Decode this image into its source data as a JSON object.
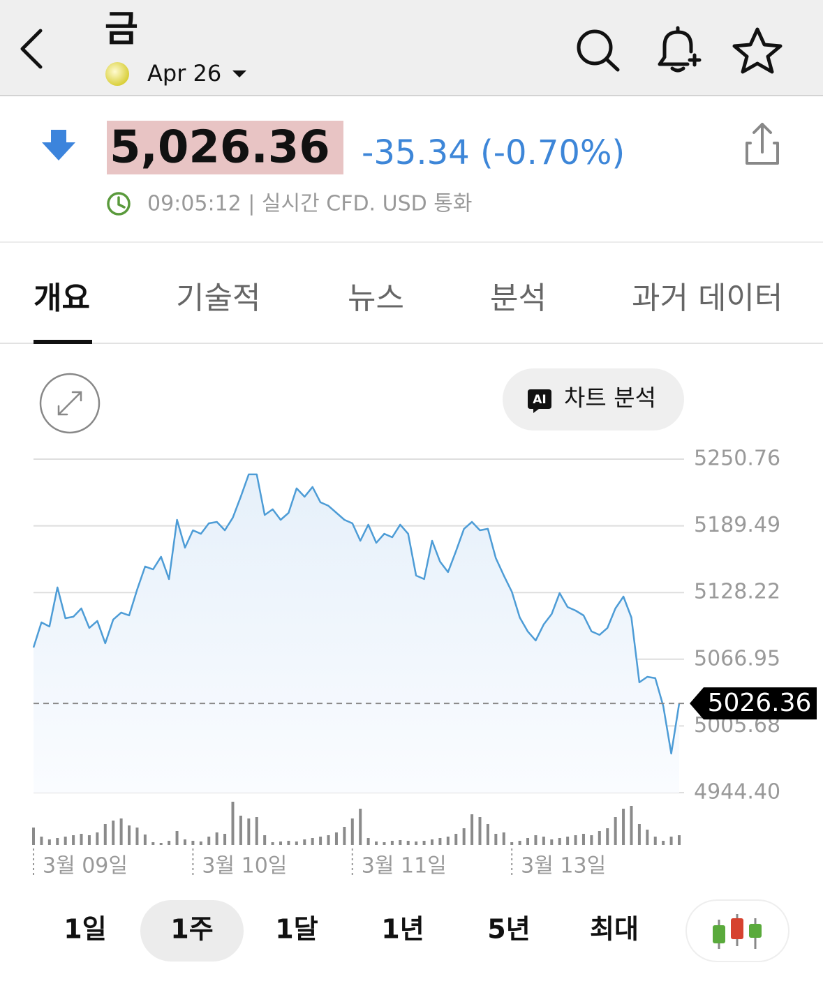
{
  "header": {
    "title": "금",
    "subtitle": "Apr 26"
  },
  "quote": {
    "price": "5,026.36",
    "change": "-35.34 (-0.70%)",
    "time_info": "09:05:12 | 실시간 CFD. USD 통화"
  },
  "tabs": [
    "개요",
    "기술적",
    "뉴스",
    "분석",
    "과거 데이터"
  ],
  "chart_button": {
    "badge": "AI",
    "label": "차트 분석"
  },
  "chart_data": {
    "type": "line",
    "categories": [
      "3월 09일",
      null,
      null,
      null,
      null,
      null,
      null,
      null,
      null,
      null,
      null,
      null,
      null,
      null,
      null,
      null,
      null,
      null,
      null,
      null,
      "3월 10일",
      null,
      null,
      null,
      null,
      null,
      null,
      null,
      null,
      null,
      null,
      null,
      null,
      null,
      null,
      null,
      null,
      null,
      null,
      null,
      "3월 11일",
      null,
      null,
      null,
      null,
      null,
      null,
      null,
      null,
      null,
      null,
      null,
      null,
      null,
      null,
      null,
      null,
      null,
      null,
      null,
      "3월 13일",
      null,
      null,
      null,
      null,
      null,
      null,
      null,
      null,
      null,
      null,
      null,
      null,
      null,
      null,
      null,
      null,
      null,
      null,
      null,
      null,
      null
    ],
    "values": [
      5077.7,
      5100.8,
      5097.0,
      5132.9,
      5104.6,
      5106.0,
      5113.6,
      5095.7,
      5102.1,
      5081.6,
      5103.4,
      5109.8,
      5107.2,
      5131.0,
      5152.1,
      5149.5,
      5161.1,
      5140.6,
      5195.0,
      5169.4,
      5185.4,
      5182.2,
      5191.8,
      5193.1,
      5185.4,
      5197.0,
      5216.2,
      5236.7,
      5236.7,
      5199.5,
      5204.7,
      5195.0,
      5201.4,
      5223.9,
      5216.2,
      5225.2,
      5211.1,
      5207.9,
      5201.4,
      5195.0,
      5191.8,
      5175.8,
      5190.6,
      5173.9,
      5182.2,
      5179.0,
      5190.6,
      5182.2,
      5143.8,
      5140.6,
      5175.8,
      5156.6,
      5147.0,
      5166.2,
      5186.7,
      5193.1,
      5185.4,
      5186.7,
      5159.8,
      5143.8,
      5129.0,
      5105.3,
      5092.5,
      5084.2,
      5098.9,
      5108.5,
      5127.7,
      5114.9,
      5111.7,
      5107.2,
      5092.5,
      5089.3,
      5095.7,
      5113.6,
      5124.5,
      5105.3,
      5045.7,
      5050.8,
      5049.6,
      5023.9,
      4980.3,
      5026.36
    ],
    "volume": [
      25,
      12,
      8,
      10,
      12,
      14,
      16,
      14,
      18,
      30,
      35,
      38,
      28,
      25,
      15,
      4,
      3,
      6,
      20,
      8,
      6,
      5,
      12,
      18,
      16,
      62,
      42,
      38,
      40,
      14,
      4,
      5,
      6,
      5,
      8,
      10,
      12,
      14,
      18,
      26,
      38,
      52,
      10,
      5,
      4,
      6,
      7,
      6,
      5,
      6,
      8,
      10,
      12,
      16,
      24,
      44,
      40,
      30,
      16,
      18,
      4,
      6,
      10,
      14,
      12,
      8,
      10,
      12,
      14,
      16,
      14,
      20,
      24,
      40,
      52,
      56,
      30,
      22,
      12,
      6,
      12,
      14
    ],
    "color": "#4d9cd6",
    "last_price": 5026.36,
    "ylim": [
      4944.4,
      5250.76
    ],
    "yticks": [
      {
        "value": 4944.4,
        "label": "4944.40"
      },
      5005.68,
      5066.95,
      5128.22,
      5189.49,
      5250.76
    ],
    "grid": true
  },
  "periods": [
    "1일",
    "1주",
    "1달",
    "1년",
    "5년",
    "최대"
  ]
}
